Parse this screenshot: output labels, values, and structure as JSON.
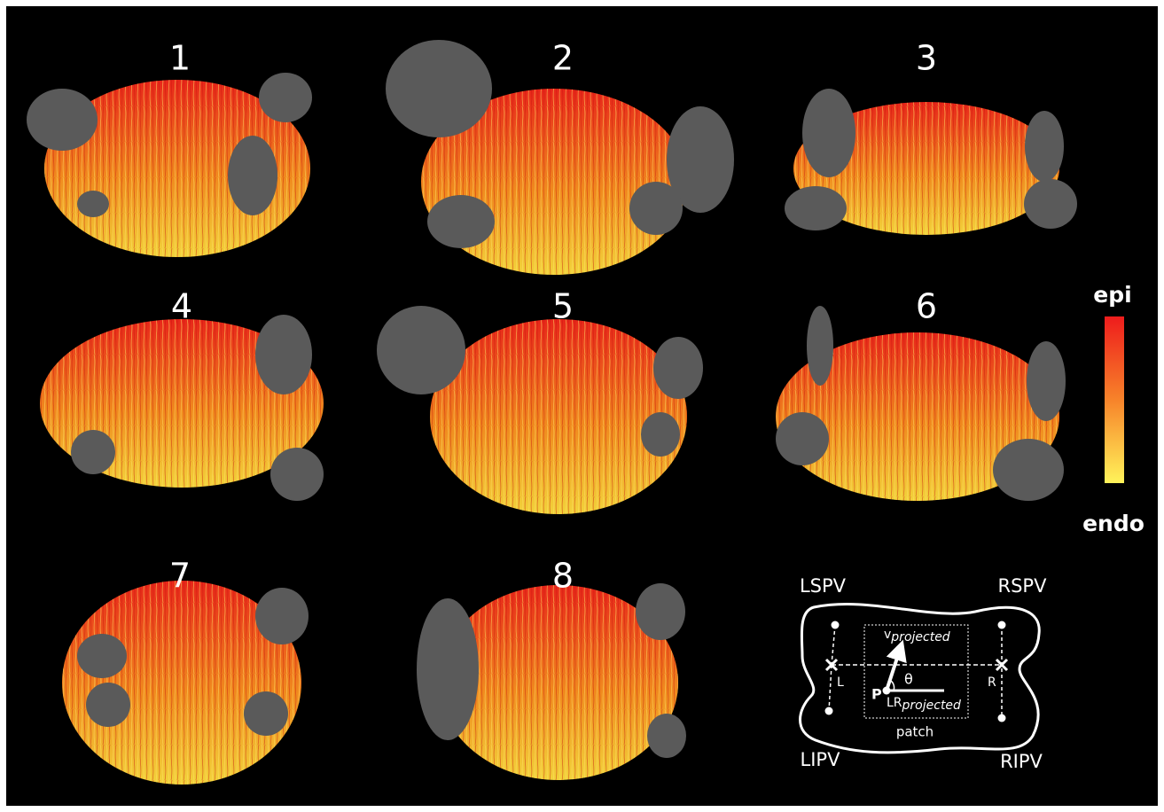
{
  "panels": [
    {
      "label": "1"
    },
    {
      "label": "2"
    },
    {
      "label": "3"
    },
    {
      "label": "4"
    },
    {
      "label": "5"
    },
    {
      "label": "6"
    },
    {
      "label": "7"
    },
    {
      "label": "8"
    }
  ],
  "colorbar": {
    "top": "epi",
    "bottom": "endo"
  },
  "diagram": {
    "veins": {
      "lspv": "LSPV",
      "rspv": "RSPV",
      "lipv": "LIPV",
      "ripv": "RIPV"
    },
    "vector": {
      "base": "v",
      "subscript": "projected"
    },
    "angle": "θ",
    "point": "P",
    "left": "L",
    "right": "R",
    "axis": {
      "base": "LR",
      "subscript": "projected"
    },
    "region": "patch"
  }
}
